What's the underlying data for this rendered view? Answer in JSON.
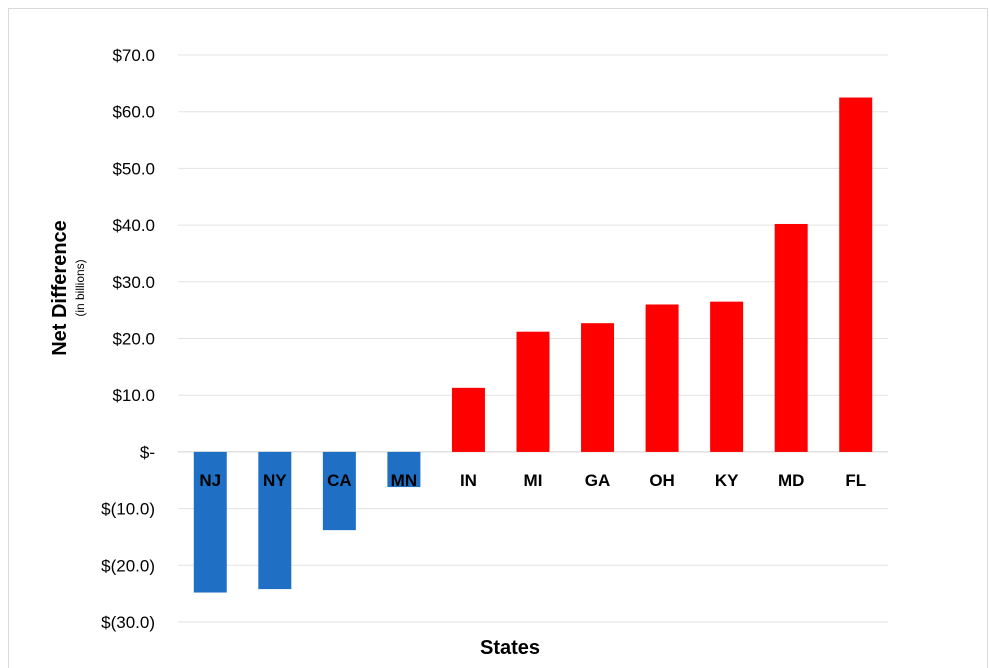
{
  "chart_data": {
    "type": "bar",
    "categories": [
      "NJ",
      "NY",
      "CA",
      "MN",
      "IN",
      "MI",
      "GA",
      "OH",
      "KY",
      "MD",
      "FL"
    ],
    "values": [
      -24.8,
      -24.2,
      -13.8,
      -6.2,
      11.3,
      21.2,
      22.7,
      26.0,
      26.5,
      40.2,
      62.5
    ],
    "colors": [
      "#1f6fc5",
      "#1f6fc5",
      "#1f6fc5",
      "#1f6fc5",
      "#ff0000",
      "#ff0000",
      "#ff0000",
      "#ff0000",
      "#ff0000",
      "#ff0000",
      "#ff0000"
    ],
    "negative_color": "#1f6fc5",
    "positive_color": "#ff0000",
    "title": "",
    "xlabel": "States",
    "ylabel": "Net Difference",
    "ylabel_sub": "(in billions)",
    "ylim": [
      -30,
      70
    ],
    "yticks": [
      70,
      60,
      50,
      40,
      30,
      20,
      10,
      0,
      -10,
      -20,
      -30
    ],
    "ytick_labels": [
      "$70.0",
      "$60.0",
      "$50.0",
      "$40.0",
      "$30.0",
      "$20.0",
      "$10.0",
      "$-",
      "$(10.0)",
      "$(20.0)",
      "$(30.0)"
    ],
    "grid": true,
    "legend": "none"
  }
}
